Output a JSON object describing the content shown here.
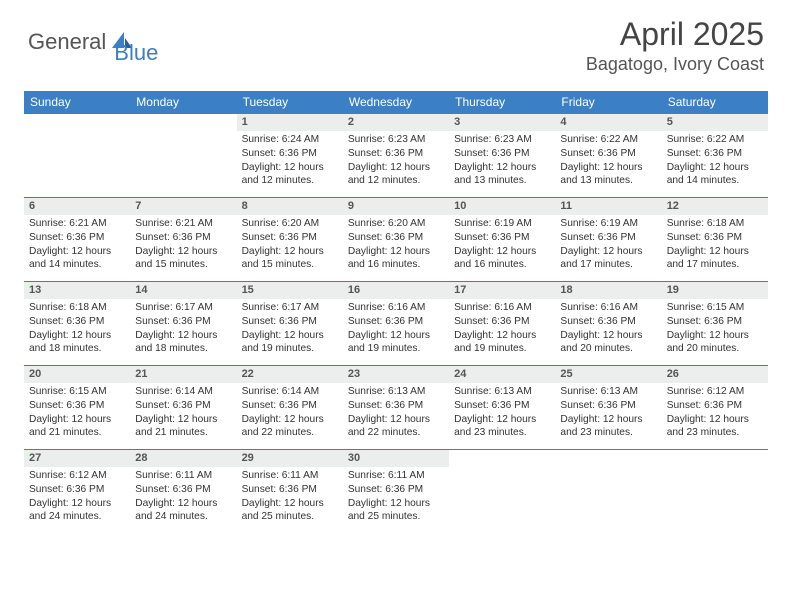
{
  "brand": {
    "part1": "General",
    "part2": "Blue"
  },
  "title": "April 2025",
  "location": "Bagatogo, Ivory Coast",
  "colors": {
    "header_bg": "#3b7fc4",
    "header_text": "#ffffff",
    "daynum_bg": "#eceded",
    "border": "#3b7fc4",
    "body_text": "#333333"
  },
  "weekdays": [
    "Sunday",
    "Monday",
    "Tuesday",
    "Wednesday",
    "Thursday",
    "Friday",
    "Saturday"
  ],
  "weeks": [
    [
      null,
      null,
      {
        "n": "1",
        "sr": "Sunrise: 6:24 AM",
        "ss": "Sunset: 6:36 PM",
        "d1": "Daylight: 12 hours",
        "d2": "and 12 minutes."
      },
      {
        "n": "2",
        "sr": "Sunrise: 6:23 AM",
        "ss": "Sunset: 6:36 PM",
        "d1": "Daylight: 12 hours",
        "d2": "and 12 minutes."
      },
      {
        "n": "3",
        "sr": "Sunrise: 6:23 AM",
        "ss": "Sunset: 6:36 PM",
        "d1": "Daylight: 12 hours",
        "d2": "and 13 minutes."
      },
      {
        "n": "4",
        "sr": "Sunrise: 6:22 AM",
        "ss": "Sunset: 6:36 PM",
        "d1": "Daylight: 12 hours",
        "d2": "and 13 minutes."
      },
      {
        "n": "5",
        "sr": "Sunrise: 6:22 AM",
        "ss": "Sunset: 6:36 PM",
        "d1": "Daylight: 12 hours",
        "d2": "and 14 minutes."
      }
    ],
    [
      {
        "n": "6",
        "sr": "Sunrise: 6:21 AM",
        "ss": "Sunset: 6:36 PM",
        "d1": "Daylight: 12 hours",
        "d2": "and 14 minutes."
      },
      {
        "n": "7",
        "sr": "Sunrise: 6:21 AM",
        "ss": "Sunset: 6:36 PM",
        "d1": "Daylight: 12 hours",
        "d2": "and 15 minutes."
      },
      {
        "n": "8",
        "sr": "Sunrise: 6:20 AM",
        "ss": "Sunset: 6:36 PM",
        "d1": "Daylight: 12 hours",
        "d2": "and 15 minutes."
      },
      {
        "n": "9",
        "sr": "Sunrise: 6:20 AM",
        "ss": "Sunset: 6:36 PM",
        "d1": "Daylight: 12 hours",
        "d2": "and 16 minutes."
      },
      {
        "n": "10",
        "sr": "Sunrise: 6:19 AM",
        "ss": "Sunset: 6:36 PM",
        "d1": "Daylight: 12 hours",
        "d2": "and 16 minutes."
      },
      {
        "n": "11",
        "sr": "Sunrise: 6:19 AM",
        "ss": "Sunset: 6:36 PM",
        "d1": "Daylight: 12 hours",
        "d2": "and 17 minutes."
      },
      {
        "n": "12",
        "sr": "Sunrise: 6:18 AM",
        "ss": "Sunset: 6:36 PM",
        "d1": "Daylight: 12 hours",
        "d2": "and 17 minutes."
      }
    ],
    [
      {
        "n": "13",
        "sr": "Sunrise: 6:18 AM",
        "ss": "Sunset: 6:36 PM",
        "d1": "Daylight: 12 hours",
        "d2": "and 18 minutes."
      },
      {
        "n": "14",
        "sr": "Sunrise: 6:17 AM",
        "ss": "Sunset: 6:36 PM",
        "d1": "Daylight: 12 hours",
        "d2": "and 18 minutes."
      },
      {
        "n": "15",
        "sr": "Sunrise: 6:17 AM",
        "ss": "Sunset: 6:36 PM",
        "d1": "Daylight: 12 hours",
        "d2": "and 19 minutes."
      },
      {
        "n": "16",
        "sr": "Sunrise: 6:16 AM",
        "ss": "Sunset: 6:36 PM",
        "d1": "Daylight: 12 hours",
        "d2": "and 19 minutes."
      },
      {
        "n": "17",
        "sr": "Sunrise: 6:16 AM",
        "ss": "Sunset: 6:36 PM",
        "d1": "Daylight: 12 hours",
        "d2": "and 19 minutes."
      },
      {
        "n": "18",
        "sr": "Sunrise: 6:16 AM",
        "ss": "Sunset: 6:36 PM",
        "d1": "Daylight: 12 hours",
        "d2": "and 20 minutes."
      },
      {
        "n": "19",
        "sr": "Sunrise: 6:15 AM",
        "ss": "Sunset: 6:36 PM",
        "d1": "Daylight: 12 hours",
        "d2": "and 20 minutes."
      }
    ],
    [
      {
        "n": "20",
        "sr": "Sunrise: 6:15 AM",
        "ss": "Sunset: 6:36 PM",
        "d1": "Daylight: 12 hours",
        "d2": "and 21 minutes."
      },
      {
        "n": "21",
        "sr": "Sunrise: 6:14 AM",
        "ss": "Sunset: 6:36 PM",
        "d1": "Daylight: 12 hours",
        "d2": "and 21 minutes."
      },
      {
        "n": "22",
        "sr": "Sunrise: 6:14 AM",
        "ss": "Sunset: 6:36 PM",
        "d1": "Daylight: 12 hours",
        "d2": "and 22 minutes."
      },
      {
        "n": "23",
        "sr": "Sunrise: 6:13 AM",
        "ss": "Sunset: 6:36 PM",
        "d1": "Daylight: 12 hours",
        "d2": "and 22 minutes."
      },
      {
        "n": "24",
        "sr": "Sunrise: 6:13 AM",
        "ss": "Sunset: 6:36 PM",
        "d1": "Daylight: 12 hours",
        "d2": "and 23 minutes."
      },
      {
        "n": "25",
        "sr": "Sunrise: 6:13 AM",
        "ss": "Sunset: 6:36 PM",
        "d1": "Daylight: 12 hours",
        "d2": "and 23 minutes."
      },
      {
        "n": "26",
        "sr": "Sunrise: 6:12 AM",
        "ss": "Sunset: 6:36 PM",
        "d1": "Daylight: 12 hours",
        "d2": "and 23 minutes."
      }
    ],
    [
      {
        "n": "27",
        "sr": "Sunrise: 6:12 AM",
        "ss": "Sunset: 6:36 PM",
        "d1": "Daylight: 12 hours",
        "d2": "and 24 minutes."
      },
      {
        "n": "28",
        "sr": "Sunrise: 6:11 AM",
        "ss": "Sunset: 6:36 PM",
        "d1": "Daylight: 12 hours",
        "d2": "and 24 minutes."
      },
      {
        "n": "29",
        "sr": "Sunrise: 6:11 AM",
        "ss": "Sunset: 6:36 PM",
        "d1": "Daylight: 12 hours",
        "d2": "and 25 minutes."
      },
      {
        "n": "30",
        "sr": "Sunrise: 6:11 AM",
        "ss": "Sunset: 6:36 PM",
        "d1": "Daylight: 12 hours",
        "d2": "and 25 minutes."
      },
      null,
      null,
      null
    ]
  ]
}
